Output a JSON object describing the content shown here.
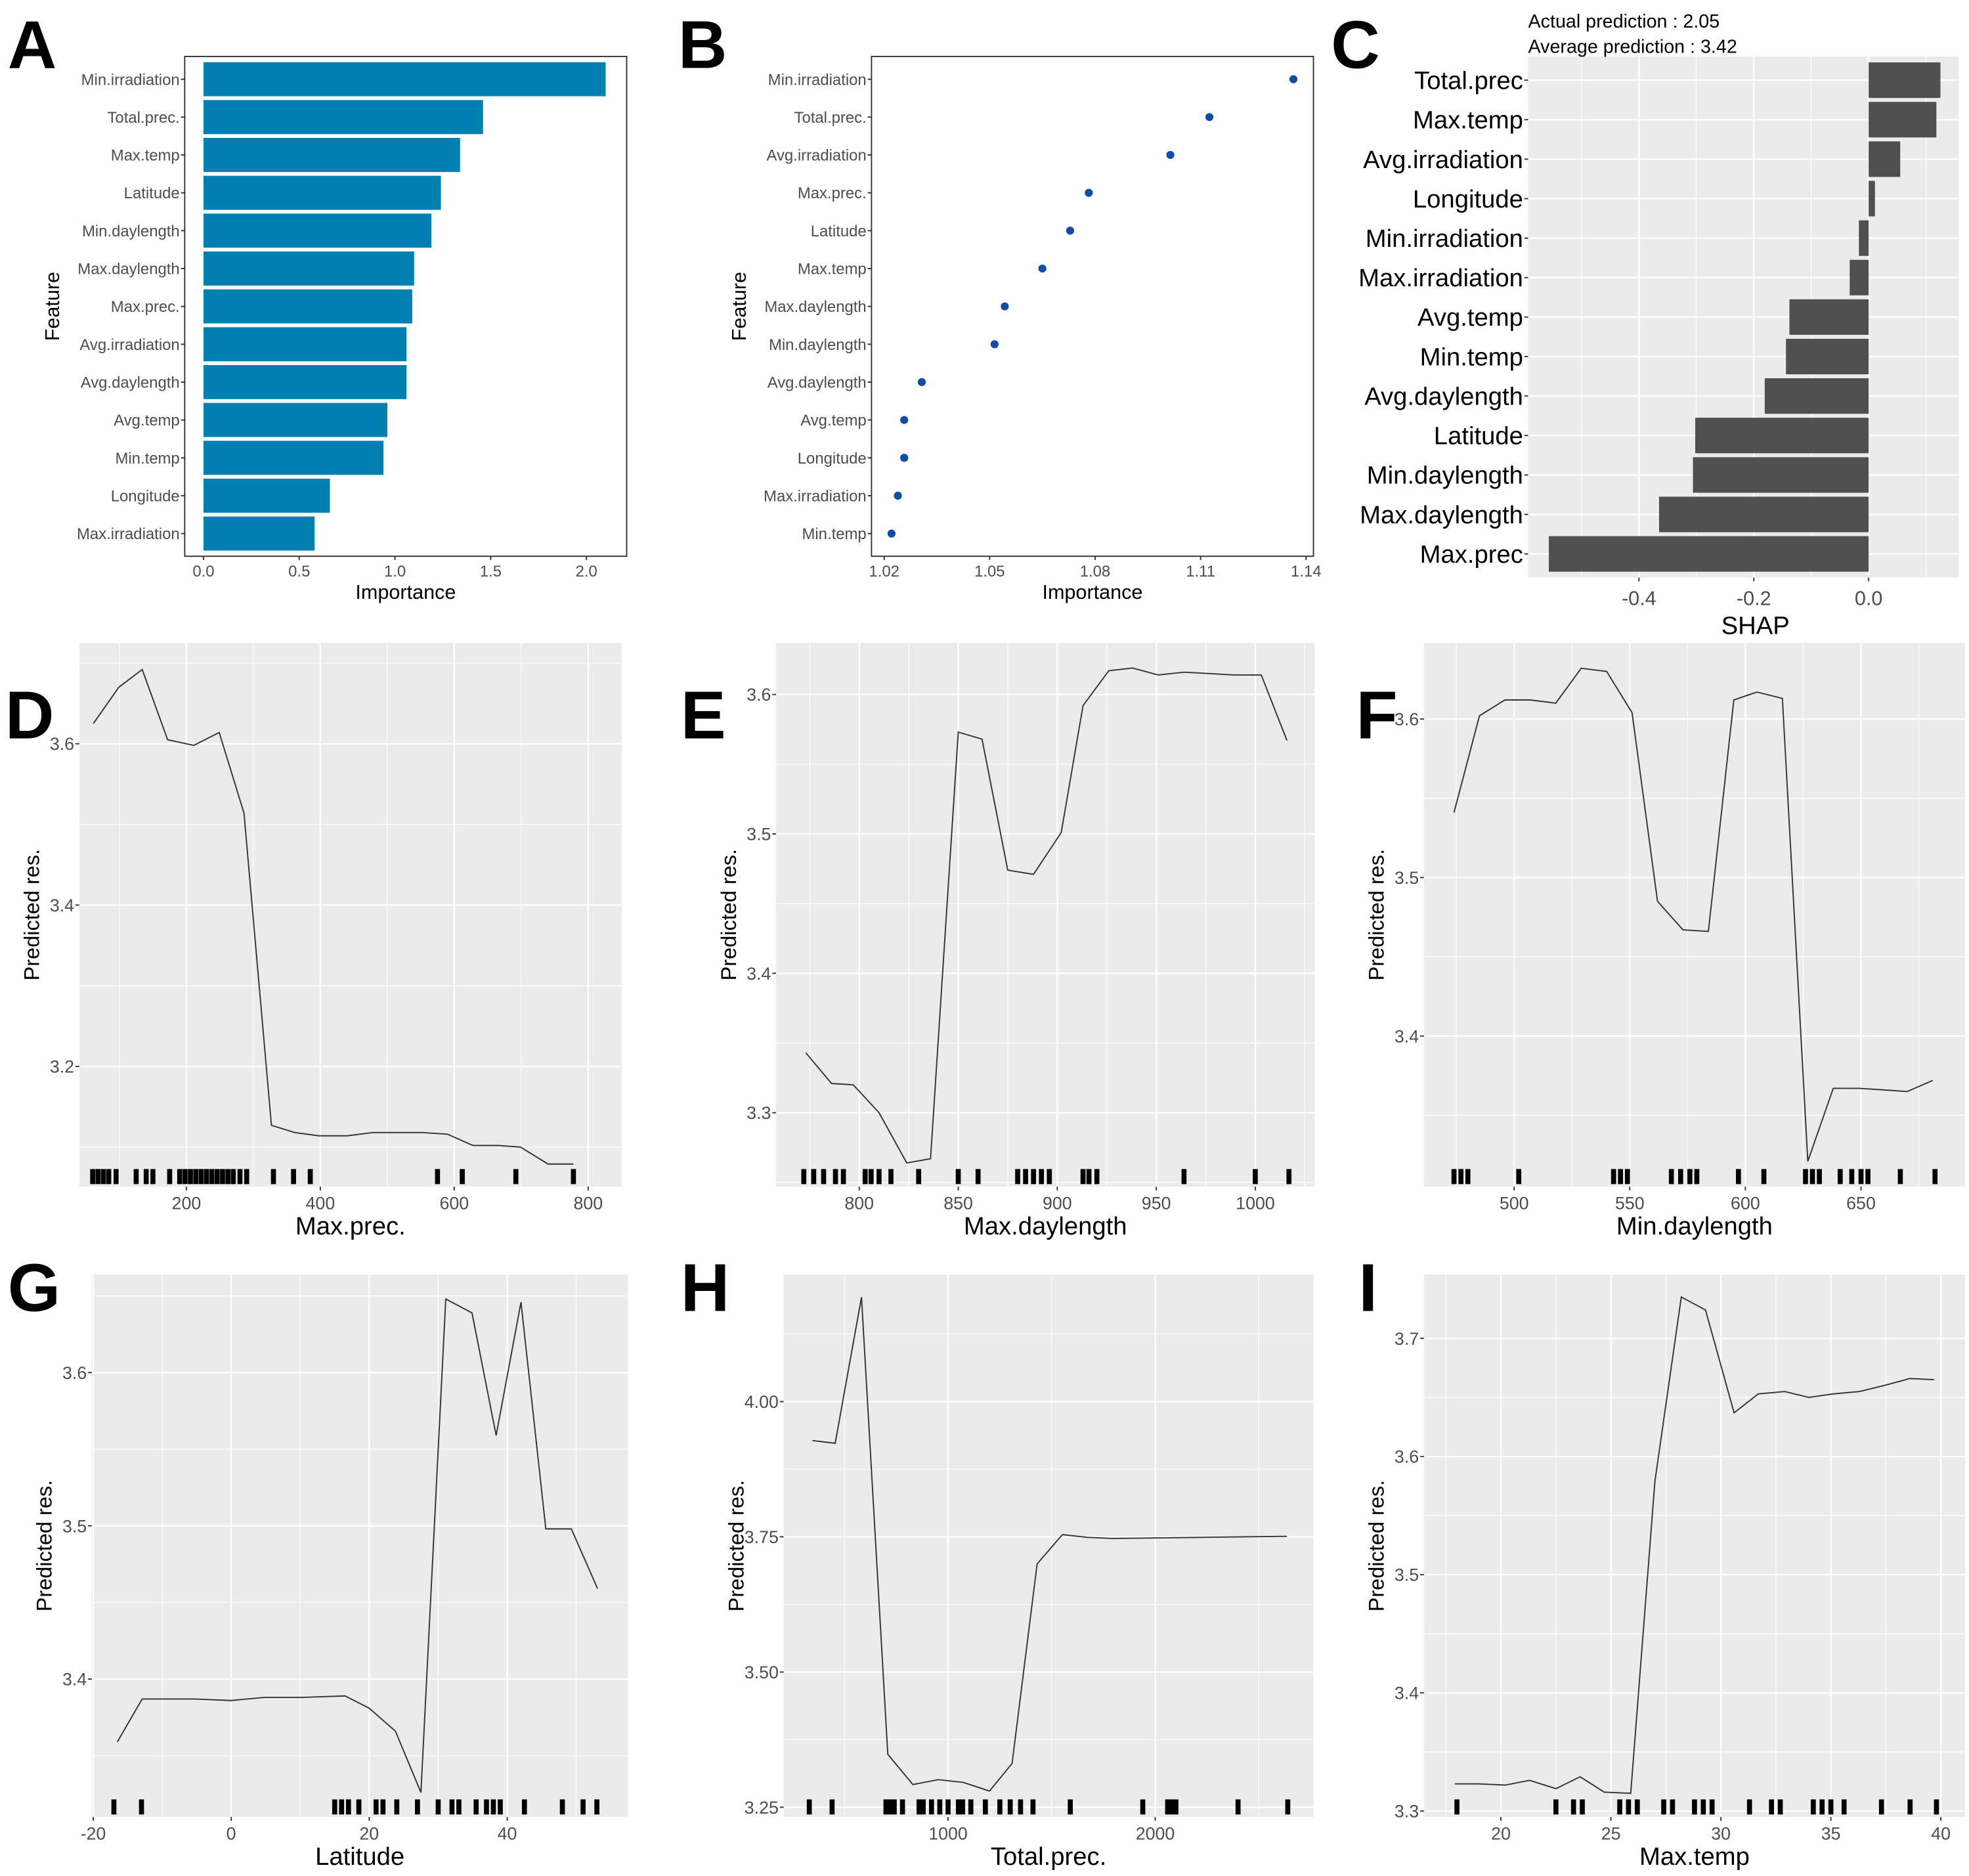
{
  "chart_data": [
    {
      "panel": "A",
      "type": "bar",
      "orientation": "horizontal",
      "xlabel": "Importance",
      "ylabel": "Feature",
      "categories": [
        "Min.irradiation",
        "Total.prec.",
        "Max.temp",
        "Latitude",
        "Min.daylength",
        "Max.daylength",
        "Max.prec.",
        "Avg.irradiation",
        "Avg.daylength",
        "Avg.temp",
        "Min.temp",
        "Longitude",
        "Max.irradiation"
      ],
      "values": [
        2.1,
        1.46,
        1.34,
        1.24,
        1.19,
        1.1,
        1.09,
        1.06,
        1.06,
        0.96,
        0.94,
        0.66,
        0.58
      ],
      "xlim": [
        -0.098,
        2.21
      ],
      "xticks": [
        0,
        0.5,
        1,
        1.5,
        2
      ],
      "xtick_labels": [
        "0.0",
        "0.5",
        "1.0",
        "1.5",
        "2.0"
      ],
      "color": "#0080B0",
      "grid": false
    },
    {
      "panel": "B",
      "type": "scatter",
      "orientation": "horizontal",
      "xlabel": "Importance",
      "ylabel": "Feature",
      "categories": [
        "Min.irradiation",
        "Total.prec.",
        "Avg.irradiation",
        "Max.prec.",
        "Latitude",
        "Max.temp",
        "Max.daylength",
        "Min.daylength",
        "Avg.daylength",
        "Avg.temp",
        "Longitude",
        "Max.irradiation",
        "Min.temp"
      ],
      "values": [
        1.1364,
        1.1125,
        1.1014,
        1.0782,
        1.0729,
        1.065,
        1.0543,
        1.0514,
        1.0307,
        1.0257,
        1.0257,
        1.0239,
        1.0221
      ],
      "xlim": [
        1.0164,
        1.1421
      ],
      "xticks": [
        1.02,
        1.05,
        1.08,
        1.11,
        1.14
      ],
      "xtick_labels": [
        "1.02",
        "1.05",
        "1.08",
        "1.11",
        "1.14"
      ],
      "color": "#0F4DA8",
      "grid": false
    },
    {
      "panel": "C",
      "type": "bar",
      "orientation": "horizontal",
      "title_lines": [
        "Actual prediction : 2.05",
        "Average prediction : 3.42"
      ],
      "xlabel": "SHAP",
      "ylabel": "",
      "categories": [
        "Total.prec",
        "Max.temp",
        "Avg.irradiation",
        "Longitude",
        "Min.irradiation",
        "Max.irradiation",
        "Avg.temp",
        "Min.temp",
        "Avg.daylength",
        "Latitude",
        "Min.daylength",
        "Max.daylength",
        "Max.prec"
      ],
      "values": [
        0.125,
        0.118,
        0.055,
        0.011,
        -0.017,
        -0.033,
        -0.138,
        -0.144,
        -0.181,
        -0.302,
        -0.306,
        -0.365,
        -0.557
      ],
      "xlim": [
        -0.593,
        0.157
      ],
      "xticks": [
        -0.4,
        -0.2,
        0
      ],
      "xtick_labels": [
        "-0.4",
        "-0.2",
        "0.0"
      ],
      "minor_xticks": [
        -0.5,
        -0.3,
        -0.1,
        0.1
      ],
      "color": "#505050",
      "grid": true
    },
    {
      "panel": "D",
      "type": "line",
      "xlabel": "Max.prec.",
      "ylabel": "Predicted res.",
      "x": [
        61,
        99,
        134,
        172,
        211,
        249,
        286,
        327,
        362,
        398,
        440,
        478,
        515,
        553,
        590,
        628,
        665,
        699,
        740,
        778
      ],
      "y": [
        3.625,
        3.67,
        3.692,
        3.605,
        3.598,
        3.614,
        3.514,
        3.127,
        3.118,
        3.114,
        3.114,
        3.118,
        3.118,
        3.118,
        3.116,
        3.102,
        3.102,
        3.1,
        3.079,
        3.079
      ],
      "rug": [
        60,
        68,
        76,
        84,
        95,
        125,
        140,
        150,
        175,
        190,
        198,
        206,
        214,
        222,
        230,
        238,
        246,
        254,
        262,
        270,
        280,
        290,
        330,
        360,
        385,
        575,
        612,
        692,
        778
      ],
      "xlim": [
        40,
        850
      ],
      "ylim": [
        3.051,
        3.725
      ],
      "xticks": [
        200,
        400,
        600,
        800
      ],
      "yticks": [
        3.2,
        3.4,
        3.6
      ],
      "xtick_labels": [
        "200",
        "400",
        "600",
        "800"
      ],
      "ytick_labels": [
        "3.2",
        "3.4",
        "3.6"
      ],
      "minor_xticks": [
        100,
        300,
        500,
        700
      ],
      "minor_yticks": [
        3.1,
        3.3,
        3.5,
        3.7
      ]
    },
    {
      "panel": "E",
      "type": "line",
      "xlabel": "Max.daylength",
      "ylabel": "Predicted res.",
      "x": [
        773,
        786,
        797,
        810,
        824,
        836,
        850,
        862,
        875,
        888,
        902,
        913,
        926,
        938,
        951,
        964,
        977,
        989,
        1003,
        1016
      ],
      "y": [
        3.343,
        3.321,
        3.32,
        3.3,
        3.264,
        3.267,
        3.573,
        3.568,
        3.474,
        3.471,
        3.501,
        3.592,
        3.617,
        3.619,
        3.614,
        3.616,
        3.615,
        3.614,
        3.614,
        3.567
      ],
      "rug": [
        772,
        777,
        782,
        788,
        792,
        803,
        806,
        810,
        816,
        830,
        850,
        860,
        880,
        884,
        888,
        892,
        896,
        913,
        916,
        920,
        964,
        1000,
        1017
      ],
      "xlim": [
        758,
        1030
      ],
      "ylim": [
        3.247,
        3.637
      ],
      "xticks": [
        800,
        850,
        900,
        950,
        1000
      ],
      "yticks": [
        3.3,
        3.4,
        3.5,
        3.6
      ],
      "xtick_labels": [
        "800",
        "850",
        "900",
        "950",
        "1000"
      ],
      "ytick_labels": [
        "3.3",
        "3.4",
        "3.5",
        "3.6"
      ],
      "minor_xticks": [
        775,
        825,
        875,
        925,
        975,
        1025
      ],
      "minor_yticks": [
        3.25,
        3.35,
        3.45,
        3.55
      ]
    },
    {
      "panel": "F",
      "type": "line",
      "xlabel": "Min.daylength",
      "ylabel": "Predicted res.",
      "x": [
        474,
        485,
        496,
        507,
        518,
        529,
        540,
        551,
        562,
        573,
        584,
        595,
        605,
        616,
        627,
        638,
        649,
        660,
        670,
        681
      ],
      "y": [
        3.541,
        3.602,
        3.612,
        3.612,
        3.61,
        3.632,
        3.63,
        3.604,
        3.485,
        3.467,
        3.466,
        3.612,
        3.617,
        3.613,
        3.321,
        3.367,
        3.367,
        3.366,
        3.365,
        3.372
      ],
      "rug": [
        474,
        477,
        480,
        502,
        543,
        546,
        549,
        568,
        572,
        576,
        579,
        597,
        608,
        626,
        629,
        632,
        641,
        646,
        650,
        653,
        667,
        682
      ],
      "xlim": [
        461,
        695
      ],
      "ylim": [
        3.305,
        3.648
      ],
      "xticks": [
        500,
        550,
        600,
        650
      ],
      "yticks": [
        3.4,
        3.5,
        3.6
      ],
      "xtick_labels": [
        "500",
        "550",
        "600",
        "650"
      ],
      "ytick_labels": [
        "3.4",
        "3.5",
        "3.6"
      ],
      "minor_xticks": [
        475,
        525,
        575,
        625,
        675
      ],
      "minor_yticks": [
        3.35,
        3.45,
        3.55
      ]
    },
    {
      "panel": "G",
      "type": "line",
      "xlabel": "Latitude",
      "ylabel": "Predicted res.",
      "x": [
        -16.5,
        -12.9,
        -9.3,
        -5.3,
        0,
        4.7,
        10.2,
        16.5,
        20,
        23.8,
        27.5,
        31.1,
        34.9,
        38.4,
        42,
        45.6,
        49.3,
        53.1
      ],
      "y": [
        3.359,
        3.387,
        3.387,
        3.387,
        3.386,
        3.388,
        3.388,
        3.389,
        3.381,
        3.366,
        3.326,
        3.648,
        3.639,
        3.559,
        3.646,
        3.498,
        3.498,
        3.459
      ],
      "rug": [
        -17,
        -13,
        15,
        16,
        17,
        18.5,
        21,
        22,
        24,
        27,
        30,
        32,
        33,
        35.5,
        37,
        38,
        39,
        42.5,
        48,
        51,
        53
      ],
      "xlim": [
        -20.2,
        57.5
      ],
      "ylim": [
        3.31,
        3.664
      ],
      "xticks": [
        -20,
        0,
        20,
        40
      ],
      "yticks": [
        3.4,
        3.5,
        3.6
      ],
      "xtick_labels": [
        "-20",
        "0",
        "20",
        "40"
      ],
      "ytick_labels": [
        "3.4",
        "3.5",
        "3.6"
      ],
      "minor_xticks": [
        -10,
        10,
        30,
        50
      ],
      "minor_yticks": [
        3.35,
        3.45,
        3.55,
        3.65
      ]
    },
    {
      "panel": "H",
      "type": "line",
      "xlabel": "Total.prec.",
      "ylabel": "Predicted res.",
      "x": [
        345,
        455,
        582,
        709,
        830,
        952,
        1073,
        1200,
        1309,
        1430,
        1552,
        1673,
        1794,
        2636
      ],
      "y": [
        3.928,
        3.923,
        4.193,
        3.348,
        3.292,
        3.301,
        3.296,
        3.28,
        3.331,
        3.7,
        3.754,
        3.749,
        3.747,
        3.751
      ],
      "rug": [
        330,
        440,
        700,
        720,
        740,
        780,
        860,
        880,
        920,
        960,
        1000,
        1050,
        1070,
        1110,
        1180,
        1250,
        1300,
        1350,
        1410,
        1590,
        1940,
        2060,
        2080,
        2100,
        2400,
        2640
      ],
      "xlim": [
        206,
        2764
      ],
      "ylim": [
        3.232,
        4.235
      ],
      "xticks": [
        1000,
        2000
      ],
      "yticks": [
        3.25,
        3.5,
        3.75,
        4.0
      ],
      "xtick_labels": [
        "1000",
        "2000"
      ],
      "ytick_labels": [
        "3.25",
        "3.50",
        "3.75",
        "4.00"
      ],
      "minor_xticks": [
        500,
        1500,
        2500
      ],
      "minor_yticks": [
        3.375,
        3.625,
        3.875,
        4.125
      ]
    },
    {
      "panel": "I",
      "type": "line",
      "xlabel": "Max.temp",
      "ylabel": "Predicted res.",
      "x": [
        17.9,
        19.0,
        20.2,
        21.3,
        22.5,
        23.6,
        24.7,
        25.9,
        27.0,
        28.2,
        29.3,
        30.6,
        31.7,
        32.9,
        34.0,
        35.1,
        36.3,
        37.4,
        38.6,
        39.7
      ],
      "y": [
        3.323,
        3.323,
        3.322,
        3.326,
        3.319,
        3.329,
        3.316,
        3.315,
        3.579,
        3.735,
        3.724,
        3.637,
        3.653,
        3.655,
        3.65,
        3.653,
        3.655,
        3.66,
        3.666,
        3.665
      ],
      "rug": [
        18,
        22.5,
        23.3,
        23.7,
        25.4,
        25.8,
        26.2,
        27.4,
        27.8,
        28.8,
        29.2,
        29.6,
        31.3,
        32.3,
        32.7,
        34.2,
        34.6,
        35.0,
        35.6,
        37.3,
        38.6,
        39.8
      ],
      "xlim": [
        16.5,
        41.1
      ],
      "ylim": [
        3.295,
        3.754
      ],
      "xticks": [
        20,
        25,
        30,
        35,
        40
      ],
      "yticks": [
        3.3,
        3.4,
        3.5,
        3.6,
        3.7
      ],
      "xtick_labels": [
        "20",
        "25",
        "30",
        "35",
        "40"
      ],
      "ytick_labels": [
        "3.3",
        "3.4",
        "3.5",
        "3.6",
        "3.7"
      ],
      "minor_xticks": [
        17.5,
        22.5,
        27.5,
        32.5,
        37.5
      ],
      "minor_yticks": [
        3.35,
        3.45,
        3.55,
        3.65
      ]
    }
  ]
}
